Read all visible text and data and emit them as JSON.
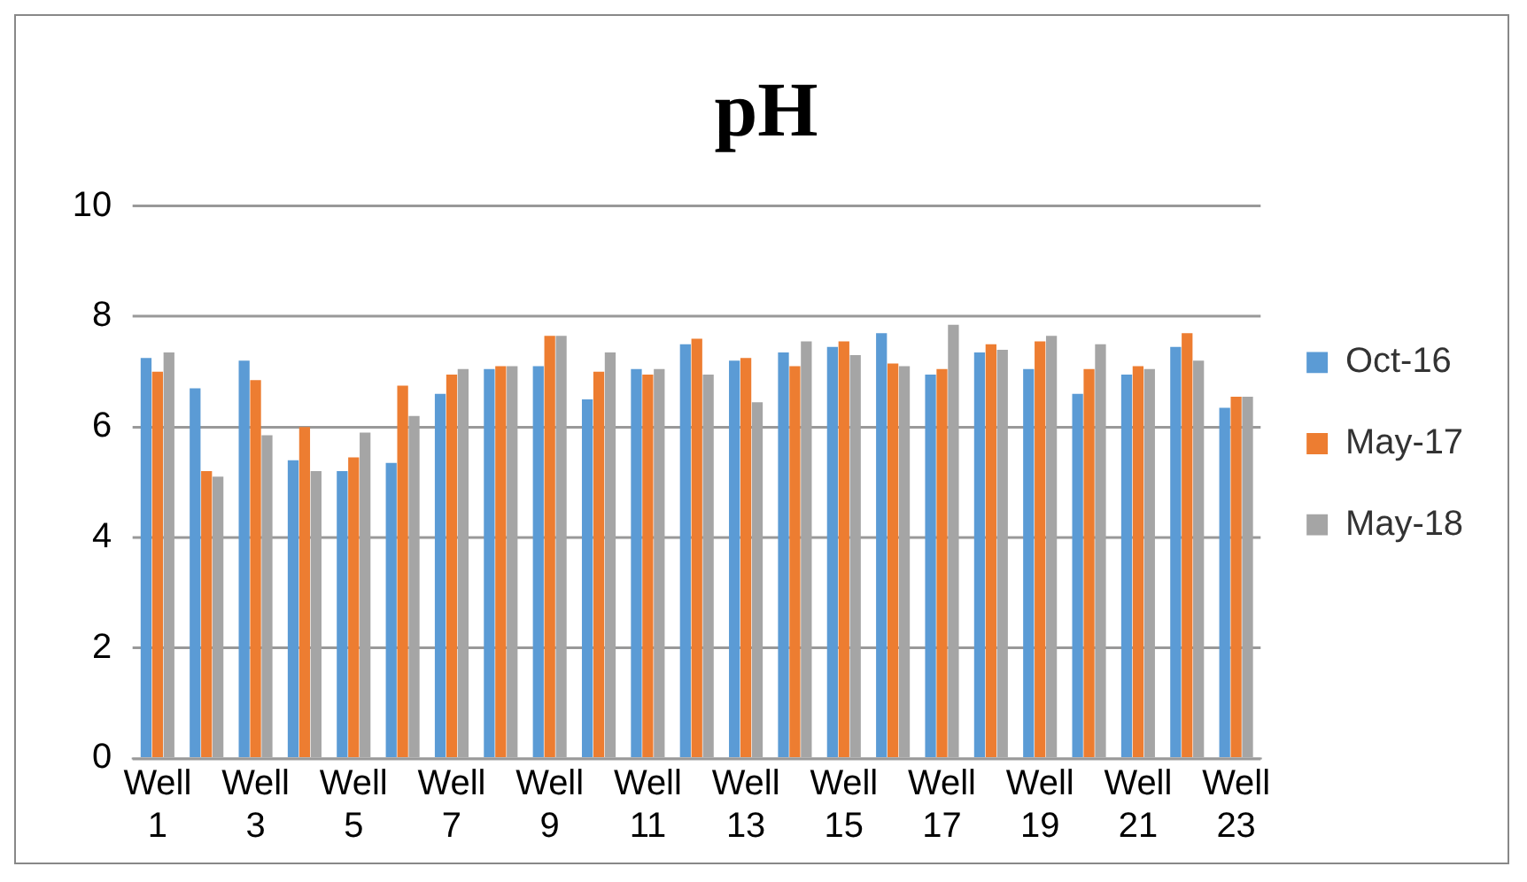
{
  "chart_data": {
    "type": "bar",
    "title": "pH",
    "categories": [
      "Well 1",
      null,
      "Well 3",
      null,
      "Well 5",
      null,
      "Well 7",
      null,
      "Well 9",
      null,
      "Well 11",
      null,
      "Well 13",
      null,
      "Well 15",
      null,
      "Well 17",
      null,
      "Well 19",
      null,
      "Well 21",
      null,
      "Well 23"
    ],
    "series": [
      {
        "name": "Oct-16",
        "color": "#5b9bd5",
        "values": [
          7.25,
          6.7,
          7.2,
          5.4,
          5.2,
          5.35,
          6.6,
          7.05,
          7.1,
          6.5,
          7.05,
          7.5,
          7.2,
          7.35,
          7.45,
          7.7,
          6.95,
          7.35,
          7.05,
          6.6,
          6.95,
          7.45,
          6.35
        ]
      },
      {
        "name": "May-17",
        "color": "#ed7d31",
        "values": [
          7.0,
          5.2,
          6.85,
          6.0,
          5.45,
          6.75,
          6.95,
          7.1,
          7.65,
          7.0,
          6.95,
          7.6,
          7.25,
          7.1,
          7.55,
          7.15,
          7.05,
          7.5,
          7.55,
          7.05,
          7.1,
          7.7,
          6.55
        ]
      },
      {
        "name": "May-18",
        "color": "#a5a5a5",
        "values": [
          7.35,
          5.1,
          5.85,
          5.2,
          5.9,
          6.2,
          7.05,
          7.1,
          7.65,
          7.35,
          7.05,
          6.95,
          6.45,
          7.55,
          7.3,
          7.1,
          7.85,
          7.4,
          7.65,
          7.5,
          7.05,
          7.2,
          6.55
        ]
      }
    ],
    "ylim": [
      0,
      10
    ],
    "yticks": [
      0,
      2,
      4,
      6,
      8,
      10
    ],
    "grid": "y",
    "legend": "right"
  }
}
